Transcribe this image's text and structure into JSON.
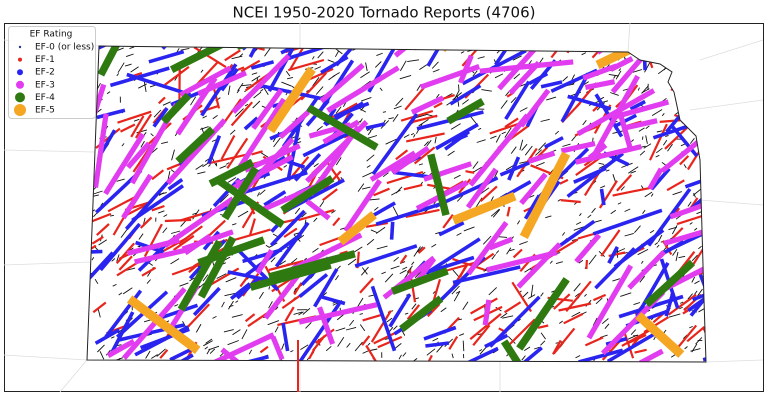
{
  "title": "NCEI 1950-2020 Tornado Reports (4706)",
  "legend": {
    "title": "EF Rating",
    "entries": [
      {
        "label": "EF-0 (or less)",
        "color": "#1f3a93"
      },
      {
        "label": "EF-1",
        "color": "#e8251c"
      },
      {
        "label": "EF-2",
        "color": "#2a24f0"
      },
      {
        "label": "EF-3",
        "color": "#e23cf0"
      },
      {
        "label": "EF-4",
        "color": "#2e7a10"
      },
      {
        "label": "EF-5",
        "color": "#f5a623"
      }
    ]
  }
}
